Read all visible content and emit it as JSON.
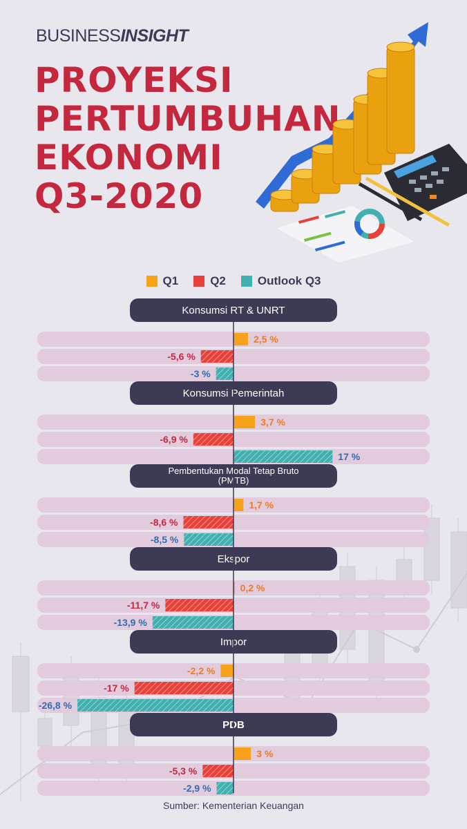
{
  "header": {
    "brand_part1": "BUSINESS",
    "brand_part2": "INSIGHT",
    "title_lines": [
      "PROYEKSI",
      "PERTUMBUHAN",
      "EKONOMI",
      "Q3-2020"
    ]
  },
  "colors": {
    "title": "#c4283f",
    "dark": "#3d3a55",
    "q1": "#f7a21b",
    "q2": "#e8413a",
    "q3": "#43b0b0",
    "q1_text": "#f07b1d",
    "q2_text": "#c4283f",
    "q3_text": "#2e6db3",
    "track": "#e2cbdc",
    "axis": "#3d3a55"
  },
  "chart_data": {
    "type": "bar",
    "orientation": "horizontal",
    "unit": "%",
    "legend": [
      "Q1",
      "Q2",
      "Outlook Q3"
    ],
    "legend_placement": "top-center",
    "groups": [
      {
        "name": "Konsumsi RT & UNRT",
        "values": [
          2.5,
          -5.6,
          -3
        ],
        "labels": [
          "2,5 %",
          "-5,6 %",
          "-3 %"
        ]
      },
      {
        "name": "Konsumsi Pemerintah",
        "values": [
          3.7,
          -6.9,
          17
        ],
        "labels": [
          "3,7 %",
          "-6,9 %",
          "17 %"
        ]
      },
      {
        "name": "Pembentukan Modal Tetap Bruto (PMTB)",
        "name_lines": [
          "Pembentukan Modal Tetap Bruto",
          "(PMTB)"
        ],
        "values": [
          1.7,
          -8.6,
          -8.5
        ],
        "labels": [
          "1,7 %",
          "-8,6 %",
          "-8,5 %"
        ]
      },
      {
        "name": "Ekspor",
        "values": [
          0.2,
          -11.7,
          -13.9
        ],
        "labels": [
          "0,2 %",
          "-11,7 %",
          "-13,9 %"
        ]
      },
      {
        "name": "Impor",
        "values": [
          -2.2,
          -17,
          -26.8
        ],
        "labels": [
          "-2,2 %",
          "-17 %",
          "-26,8 %"
        ]
      },
      {
        "name": "PDB",
        "bold": true,
        "values": [
          3,
          -5.3,
          -2.9
        ],
        "labels": [
          "3 %",
          "-5,3 %",
          "-2,9 %"
        ]
      }
    ]
  },
  "source": "Sumber: Kementerian Keuangan"
}
